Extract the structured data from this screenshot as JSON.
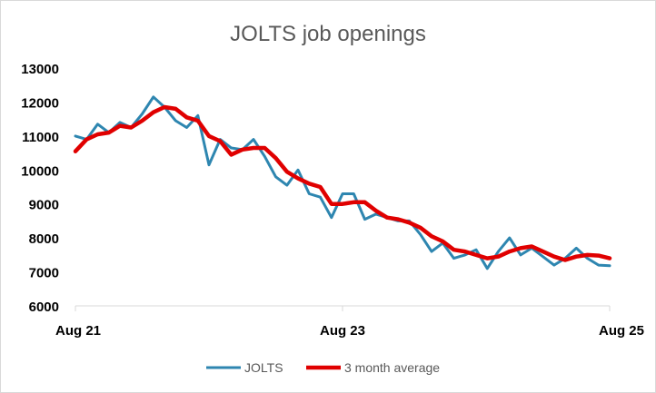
{
  "chart_data": {
    "type": "line",
    "title": "JOLTS job openings",
    "xlabel": "",
    "ylabel": "",
    "ylim": [
      6000,
      13000
    ],
    "yticks": [
      6000,
      7000,
      8000,
      9000,
      10000,
      11000,
      12000,
      13000
    ],
    "ytick_labels": [
      "6000",
      "7000",
      "8000",
      "9000",
      "10000",
      "11000",
      "12000",
      "13000"
    ],
    "xticks": [
      {
        "label": "Aug 21",
        "index": 0
      },
      {
        "label": "Aug 23",
        "index": 24
      },
      {
        "label": "Aug 25",
        "index": 48
      }
    ],
    "x": [
      "Aug 21",
      "Sep 21",
      "Oct 21",
      "Nov 21",
      "Dec 21",
      "Jan 22",
      "Feb 22",
      "Mar 22",
      "Apr 22",
      "May 22",
      "Jun 22",
      "Jul 22",
      "Aug 22",
      "Sep 22",
      "Oct 22",
      "Nov 22",
      "Dec 22",
      "Jan 23",
      "Feb 23",
      "Mar 23",
      "Apr 23",
      "May 23",
      "Jun 23",
      "Jul 23",
      "Aug 23",
      "Sep 23",
      "Oct 23",
      "Nov 23",
      "Dec 23",
      "Jan 24",
      "Feb 24",
      "Mar 24",
      "Apr 24",
      "May 24",
      "Jun 24",
      "Jul 24",
      "Aug 24",
      "Sep 24",
      "Oct 24",
      "Nov 24",
      "Dec 24",
      "Jan 25",
      "Feb 25",
      "Mar 25",
      "Apr 25",
      "May 25",
      "Jun 25",
      "Jul 25",
      "Aug 25"
    ],
    "grid": false,
    "legend_position": "bottom",
    "series": [
      {
        "name": "JOLTS",
        "color": "#2e86b0",
        "values": [
          11000,
          10900,
          11350,
          11100,
          11400,
          11250,
          11650,
          12150,
          11850,
          11450,
          11250,
          11600,
          10150,
          10900,
          10650,
          10600,
          10900,
          10400,
          9800,
          9550,
          10000,
          9300,
          9200,
          8600,
          9300,
          9300,
          8550,
          8700,
          8600,
          8500,
          8500,
          8100,
          7600,
          7850,
          7400,
          7500,
          7650,
          7100,
          7600,
          8000,
          7500,
          7700,
          7450,
          7200,
          7400,
          7700,
          7400,
          7200,
          7180
        ]
      },
      {
        "name": "3 month average",
        "color": "#e00000",
        "values": [
          10550,
          10900,
          11050,
          11100,
          11300,
          11250,
          11450,
          11700,
          11850,
          11800,
          11550,
          11450,
          11000,
          10850,
          10450,
          10600,
          10650,
          10650,
          10350,
          9950,
          9750,
          9600,
          9500,
          9000,
          9000,
          9050,
          9050,
          8800,
          8600,
          8550,
          8450,
          8300,
          8050,
          7900,
          7650,
          7600,
          7500,
          7400,
          7450,
          7600,
          7700,
          7750,
          7600,
          7450,
          7350,
          7450,
          7500,
          7480,
          7400
        ]
      }
    ]
  }
}
